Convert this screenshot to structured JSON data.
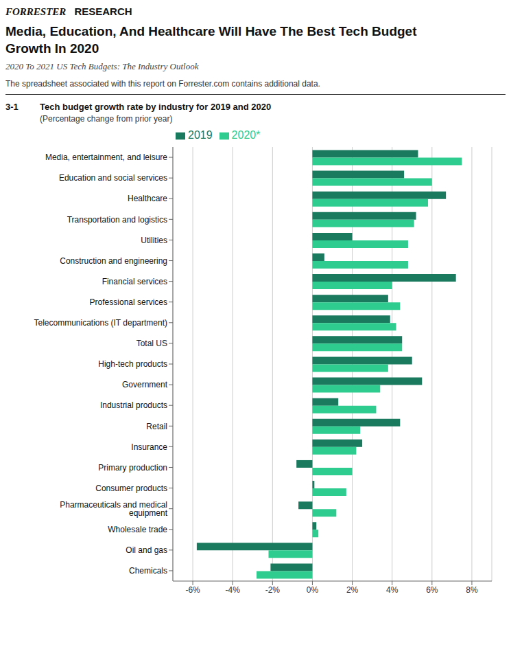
{
  "chart_data": {
    "type": "bar",
    "orientation": "horizontal",
    "title": "Media, Education, And Healthcare Will Have The Best Tech Budget\nGrowth In 2020",
    "subtitle": "2020 To 2021 US Tech Budgets: The Industry Outlook",
    "annotations": [
      "FORRESTER",
      "RESEARCH",
      "The spreadsheet associated with this report on Forrester.com contains additional data.",
      "3-1",
      "Tech budget growth rate by industry for 2019 and 2020",
      "(Percentage change from prior year)"
    ],
    "categories": [
      "Media, entertainment, and leisure",
      "Education and social services",
      "Healthcare",
      "Transportation and logistics",
      "Utilities",
      "Construction and engineering",
      "Financial services",
      "Professional services",
      "Telecommunications (IT department)",
      "Total US",
      "High-tech products",
      "Government",
      "Industrial products",
      "Retail",
      "Insurance",
      "Primary production",
      "Consumer products",
      "Pharmaceuticals and medical equipment",
      "Wholesale trade",
      "Oil and gas",
      "Chemicals"
    ],
    "series": [
      {
        "name": "2019",
        "color": "#1a7a5e",
        "values": [
          5.3,
          4.6,
          6.7,
          5.2,
          2.0,
          0.6,
          7.2,
          3.8,
          3.9,
          4.5,
          5.0,
          5.5,
          1.3,
          4.4,
          2.5,
          -0.8,
          0.1,
          -0.7,
          0.2,
          -5.8,
          -2.1
        ]
      },
      {
        "name": "2020*",
        "color": "#2ecc8e",
        "values": [
          7.5,
          6.0,
          5.8,
          5.1,
          4.8,
          4.8,
          4.0,
          4.4,
          4.2,
          4.5,
          3.8,
          3.4,
          3.2,
          2.4,
          2.2,
          2.0,
          1.7,
          1.2,
          0.3,
          -2.2,
          -2.8
        ]
      }
    ],
    "xlim": [
      -7,
      9
    ],
    "xticks": [
      {
        "value": -6,
        "label": "-6%"
      },
      {
        "value": -4,
        "label": "-4%"
      },
      {
        "value": -2,
        "label": "-2%"
      },
      {
        "value": 0,
        "label": "0%"
      },
      {
        "value": 2,
        "label": "2%"
      },
      {
        "value": 4,
        "label": "4%"
      },
      {
        "value": 6,
        "label": "6%"
      },
      {
        "value": 8,
        "label": "8%"
      }
    ],
    "grid": true,
    "legend": "top left"
  }
}
